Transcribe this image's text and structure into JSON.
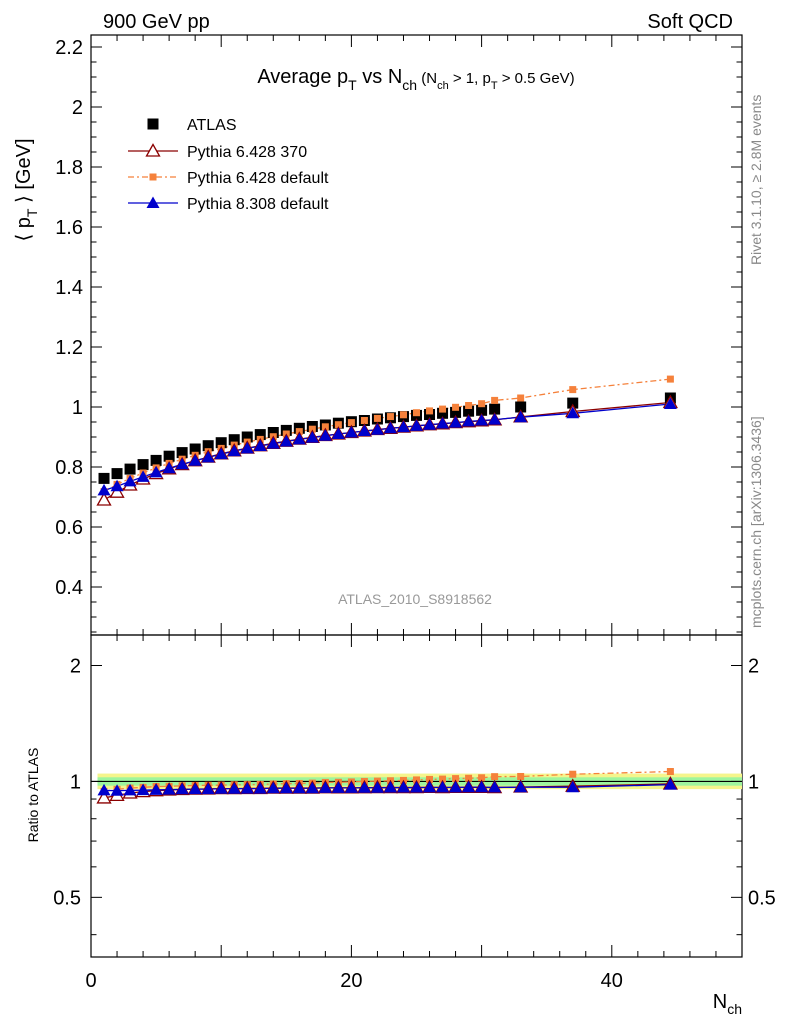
{
  "header": {
    "left": "900 GeV pp",
    "right": "Soft QCD"
  },
  "title": {
    "main_pre": "Average p",
    "main_sub": "T",
    "main_mid": " vs N",
    "main_sub2": "ch",
    "cond_pre": " (N",
    "cond_sub1": "ch",
    "cond_mid": " > 1, p",
    "cond_sub2": "T",
    "cond_post": " > 0.5 GeV)"
  },
  "ylabel": {
    "pre": "⟨ p",
    "sub": "T",
    "post": " ⟩  [GeV]"
  },
  "xlabel": {
    "pre": "N",
    "sub": "ch"
  },
  "ratio_ylabel": "Ratio to ATLAS",
  "analysis_tag": "ATLAS_2010_S8918562",
  "side_text_top": "Rivet 3.1.10, ≥ 2.8M events",
  "side_text_bottom": "mcplots.cern.ch [arXiv:1306.3436]",
  "colors": {
    "atlas": "#000000",
    "pythia6_370": "#8b0000",
    "pythia6_default": "#f5813b",
    "pythia8": "#0000cc",
    "band_inner": "#9ef59e",
    "band_outer": "#f5f58c"
  },
  "chart_data": {
    "type": "scatter",
    "xlim": [
      0,
      50
    ],
    "main_ylim": [
      0.24,
      2.24
    ],
    "ratio_ylim": [
      0.35,
      2.4
    ],
    "ratio_scale": "log",
    "x_ticks": [
      0,
      20,
      40
    ],
    "main_y_ticks": [
      0.4,
      0.6,
      0.8,
      1,
      1.2,
      1.4,
      1.6,
      1.8,
      2,
      2.2
    ],
    "ratio_y_ticks": [
      0.5,
      1,
      2
    ],
    "legend_position": "top-left",
    "series": [
      {
        "name": "ATLAS",
        "marker": "filled-square",
        "x": [
          1,
          2,
          3,
          4,
          5,
          6,
          7,
          8,
          9,
          10,
          11,
          12,
          13,
          14,
          15,
          16,
          17,
          18,
          19,
          20,
          21,
          22,
          23,
          24,
          25,
          26,
          27,
          28,
          29,
          30,
          31,
          33,
          37,
          44.5
        ],
        "y": [
          0.762,
          0.778,
          0.793,
          0.808,
          0.822,
          0.836,
          0.848,
          0.86,
          0.871,
          0.881,
          0.891,
          0.9,
          0.908,
          0.915,
          0.922,
          0.929,
          0.935,
          0.94,
          0.946,
          0.951,
          0.955,
          0.96,
          0.964,
          0.968,
          0.972,
          0.975,
          0.979,
          0.982,
          0.986,
          0.989,
          0.993,
          1.0,
          1.013,
          1.03
        ]
      },
      {
        "name": "Pythia 6.428 370",
        "marker": "open-triangle",
        "x": [
          1,
          2,
          3,
          4,
          5,
          6,
          7,
          8,
          9,
          10,
          11,
          12,
          13,
          14,
          15,
          16,
          17,
          18,
          19,
          20,
          21,
          22,
          23,
          24,
          25,
          26,
          27,
          28,
          29,
          30,
          31,
          33,
          37,
          44.5
        ],
        "y": [
          0.69,
          0.716,
          0.74,
          0.76,
          0.778,
          0.794,
          0.808,
          0.821,
          0.833,
          0.844,
          0.854,
          0.863,
          0.871,
          0.879,
          0.886,
          0.893,
          0.899,
          0.905,
          0.91,
          0.915,
          0.92,
          0.925,
          0.929,
          0.933,
          0.937,
          0.941,
          0.944,
          0.948,
          0.951,
          0.954,
          0.957,
          0.967,
          0.985,
          1.015
        ]
      },
      {
        "name": "Pythia 6.428 default",
        "marker": "filled-square-small",
        "x": [
          1,
          2,
          3,
          4,
          5,
          6,
          7,
          8,
          9,
          10,
          11,
          12,
          13,
          14,
          15,
          16,
          17,
          18,
          19,
          20,
          21,
          22,
          23,
          24,
          25,
          26,
          27,
          28,
          29,
          30,
          31,
          33,
          37,
          44.5
        ],
        "y": [
          0.718,
          0.742,
          0.762,
          0.78,
          0.797,
          0.812,
          0.826,
          0.839,
          0.851,
          0.862,
          0.873,
          0.883,
          0.892,
          0.901,
          0.91,
          0.918,
          0.926,
          0.934,
          0.941,
          0.948,
          0.955,
          0.962,
          0.968,
          0.974,
          0.981,
          0.987,
          0.993,
          0.999,
          1.005,
          1.011,
          1.022,
          1.03,
          1.058,
          1.093
        ]
      },
      {
        "name": "Pythia 8.308 default",
        "marker": "filled-triangle",
        "x": [
          1,
          2,
          3,
          4,
          5,
          6,
          7,
          8,
          9,
          10,
          11,
          12,
          13,
          14,
          15,
          16,
          17,
          18,
          19,
          20,
          21,
          22,
          23,
          24,
          25,
          26,
          27,
          28,
          29,
          30,
          31,
          33,
          37,
          44.5
        ],
        "y": [
          0.722,
          0.736,
          0.752,
          0.767,
          0.782,
          0.796,
          0.809,
          0.821,
          0.832,
          0.843,
          0.853,
          0.862,
          0.87,
          0.878,
          0.885,
          0.892,
          0.898,
          0.904,
          0.91,
          0.915,
          0.92,
          0.924,
          0.929,
          0.933,
          0.937,
          0.941,
          0.945,
          0.948,
          0.952,
          0.955,
          0.958,
          0.966,
          0.979,
          1.01
        ]
      }
    ],
    "ratio_series": [
      {
        "name": "Pythia 6.428 370",
        "y": [
          0.906,
          0.92,
          0.933,
          0.941,
          0.946,
          0.95,
          0.953,
          0.955,
          0.956,
          0.958,
          0.958,
          0.959,
          0.959,
          0.961,
          0.961,
          0.961,
          0.961,
          0.963,
          0.962,
          0.962,
          0.963,
          0.964,
          0.964,
          0.964,
          0.964,
          0.965,
          0.964,
          0.965,
          0.965,
          0.965,
          0.964,
          0.967,
          0.972,
          0.985
        ]
      },
      {
        "name": "Pythia 6.428 default",
        "y": [
          0.942,
          0.954,
          0.961,
          0.965,
          0.97,
          0.971,
          0.974,
          0.976,
          0.977,
          0.978,
          0.98,
          0.981,
          0.982,
          0.985,
          0.987,
          0.988,
          0.99,
          0.994,
          0.995,
          0.997,
          1.0,
          1.002,
          1.004,
          1.006,
          1.009,
          1.012,
          1.014,
          1.017,
          1.019,
          1.022,
          1.029,
          1.03,
          1.044,
          1.061
        ]
      },
      {
        "name": "Pythia 8.308 default",
        "y": [
          0.948,
          0.946,
          0.948,
          0.949,
          0.951,
          0.952,
          0.954,
          0.955,
          0.955,
          0.957,
          0.957,
          0.958,
          0.958,
          0.96,
          0.96,
          0.96,
          0.96,
          0.962,
          0.962,
          0.962,
          0.963,
          0.963,
          0.964,
          0.964,
          0.964,
          0.965,
          0.965,
          0.965,
          0.966,
          0.966,
          0.965,
          0.966,
          0.966,
          0.981
        ]
      }
    ],
    "ratio_bands": {
      "inner": [
        0.975,
        1.025
      ],
      "outer": [
        0.955,
        1.048
      ]
    }
  }
}
